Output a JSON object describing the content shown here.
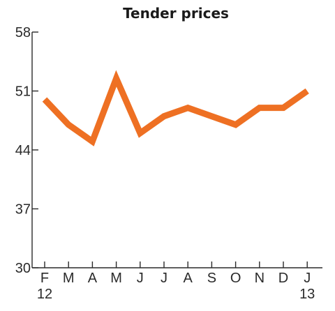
{
  "chart_data": {
    "type": "line",
    "title": "Tender prices",
    "xlabel": "",
    "ylabel": "",
    "ylim": [
      30,
      58
    ],
    "yticks": [
      30,
      37,
      44,
      51,
      58
    ],
    "grid": false,
    "legend": "none",
    "categories": [
      "F",
      "M",
      "A",
      "M",
      "J",
      "J",
      "A",
      "S",
      "O",
      "N",
      "D",
      "J"
    ],
    "year_labels": [
      {
        "index": 0,
        "text": "12"
      },
      {
        "index": 11,
        "text": "13"
      }
    ],
    "series": [
      {
        "color": "#ee7023",
        "values": [
          50,
          47,
          45,
          52.5,
          46,
          48,
          49,
          48,
          47,
          49,
          49,
          51
        ]
      }
    ]
  }
}
